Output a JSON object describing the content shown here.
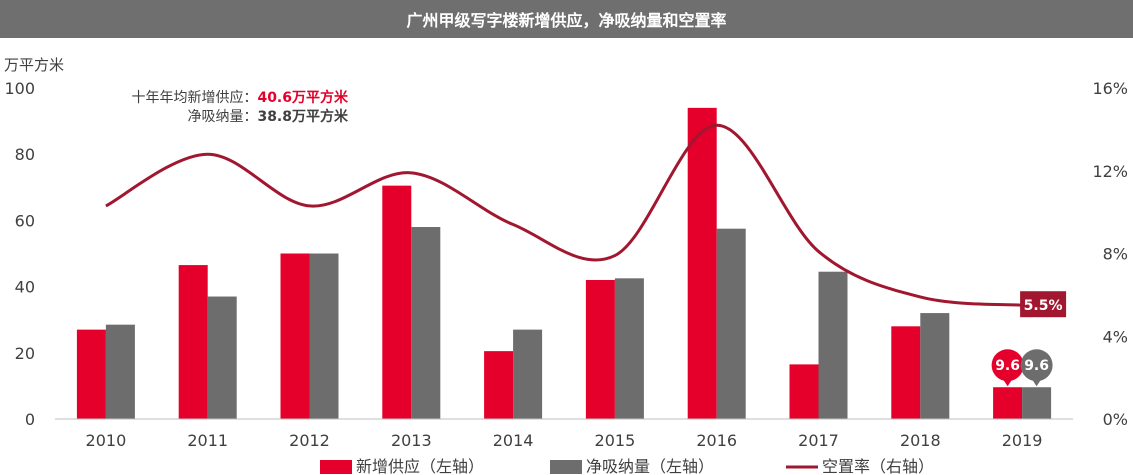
{
  "title": "广州甲级写字楼新增供应，净吸纳量和空置率",
  "y_left_unit": "万平方米",
  "annotation": {
    "line1_label": "十年年均新增供应：",
    "line1_value": "40.6万平方米",
    "line2_label": "净吸纳量：",
    "line2_value": "38.8万平方米"
  },
  "colors": {
    "supply": "#e4002b",
    "absorption": "#6d6d6d",
    "vacancy": "#a0172f"
  },
  "chart_data": {
    "type": "bar",
    "categories": [
      "2010",
      "2011",
      "2012",
      "2013",
      "2014",
      "2015",
      "2016",
      "2017",
      "2018",
      "2019"
    ],
    "series": [
      {
        "name": "新增供应（左轴）",
        "axis": "left",
        "type": "bar",
        "values": [
          27,
          46.5,
          50,
          70.5,
          20.5,
          42,
          94,
          16.5,
          28,
          9.6
        ]
      },
      {
        "name": "净吸纳量（左轴）",
        "axis": "left",
        "type": "bar",
        "values": [
          28.5,
          37,
          50,
          58,
          27,
          42.5,
          57.5,
          44.5,
          32,
          9.6
        ]
      },
      {
        "name": "空置率（右轴）",
        "axis": "right",
        "type": "line",
        "values": [
          10.3,
          12.8,
          10.3,
          11.9,
          9.4,
          7.9,
          14.2,
          8.1,
          5.9,
          5.5
        ]
      }
    ],
    "y_left": {
      "min": 0,
      "max": 100,
      "ticks": [
        "0",
        "20",
        "40",
        "60",
        "80",
        "100"
      ]
    },
    "y_right": {
      "min": 0,
      "max": 16,
      "ticks": [
        "0%",
        "4%",
        "8%",
        "12%",
        "16%"
      ]
    },
    "data_labels": {
      "supply_2019": "9.6",
      "absorption_2019": "9.6",
      "vacancy_2019": "5.5%"
    },
    "legend_position": "bottom",
    "grid": false
  }
}
